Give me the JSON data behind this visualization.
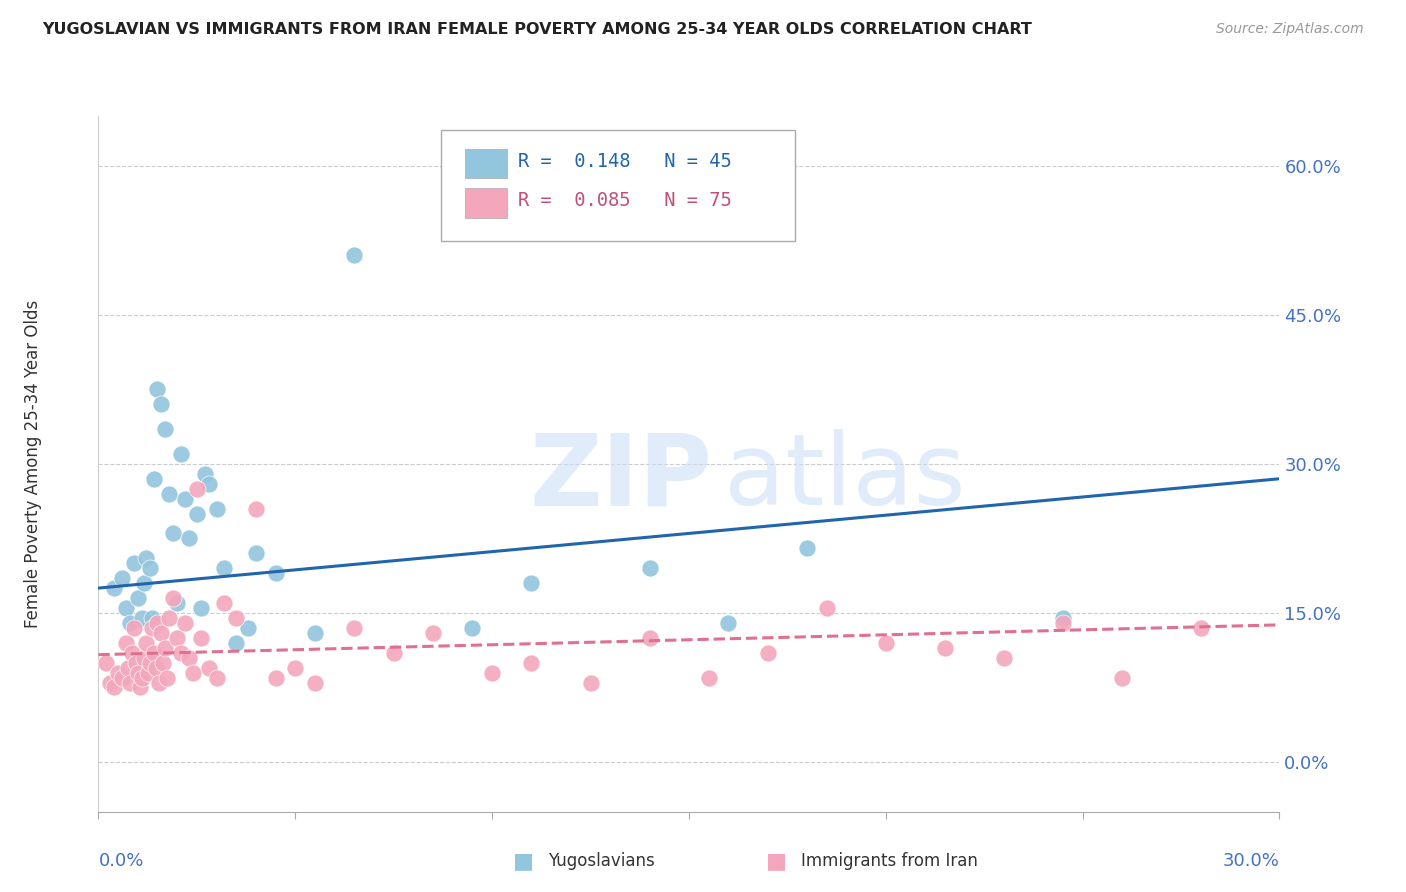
{
  "title": "YUGOSLAVIAN VS IMMIGRANTS FROM IRAN FEMALE POVERTY AMONG 25-34 YEAR OLDS CORRELATION CHART",
  "source": "Source: ZipAtlas.com",
  "ylabel": "Female Poverty Among 25-34 Year Olds",
  "ytick_values": [
    0.0,
    15.0,
    30.0,
    45.0,
    60.0
  ],
  "xlim": [
    0.0,
    30.0
  ],
  "ylim": [
    -5.0,
    65.0
  ],
  "color_blue": "#92c5de",
  "color_pink": "#f4a6bd",
  "color_blue_line": "#2166ac",
  "color_pink_line": "#e07090",
  "color_axis_blue": "#4472c4",
  "yug_x": [
    0.4,
    0.6,
    0.7,
    0.8,
    0.9,
    1.0,
    1.1,
    1.15,
    1.2,
    1.3,
    1.35,
    1.4,
    1.5,
    1.6,
    1.7,
    1.8,
    1.9,
    2.0,
    2.1,
    2.2,
    2.3,
    2.5,
    2.6,
    2.7,
    2.8,
    3.0,
    3.2,
    3.5,
    3.8,
    4.0,
    4.5,
    5.5,
    6.5,
    9.5,
    11.0,
    14.0,
    16.0,
    18.0,
    24.5
  ],
  "yug_y": [
    17.5,
    18.5,
    15.5,
    14.0,
    20.0,
    16.5,
    14.5,
    18.0,
    20.5,
    19.5,
    14.5,
    28.5,
    37.5,
    36.0,
    33.5,
    27.0,
    23.0,
    16.0,
    31.0,
    26.5,
    22.5,
    25.0,
    15.5,
    29.0,
    28.0,
    25.5,
    19.5,
    12.0,
    13.5,
    21.0,
    19.0,
    13.0,
    51.0,
    13.5,
    18.0,
    19.5,
    14.0,
    21.5,
    14.5
  ],
  "iran_x": [
    0.2,
    0.3,
    0.4,
    0.5,
    0.6,
    0.7,
    0.75,
    0.8,
    0.85,
    0.9,
    0.95,
    1.0,
    1.05,
    1.1,
    1.15,
    1.2,
    1.25,
    1.3,
    1.35,
    1.4,
    1.45,
    1.5,
    1.55,
    1.6,
    1.65,
    1.7,
    1.75,
    1.8,
    1.9,
    2.0,
    2.1,
    2.2,
    2.3,
    2.4,
    2.5,
    2.6,
    2.8,
    3.0,
    3.2,
    3.5,
    4.0,
    4.5,
    5.0,
    5.5,
    6.5,
    7.5,
    8.5,
    10.0,
    11.0,
    12.5,
    14.0,
    15.5,
    17.0,
    18.5,
    20.0,
    21.5,
    23.0,
    24.5,
    26.0,
    28.0
  ],
  "iran_y": [
    10.0,
    8.0,
    7.5,
    9.0,
    8.5,
    12.0,
    9.5,
    8.0,
    11.0,
    13.5,
    10.0,
    9.0,
    7.5,
    8.5,
    10.5,
    12.0,
    9.0,
    10.0,
    13.5,
    11.0,
    9.5,
    14.0,
    8.0,
    13.0,
    10.0,
    11.5,
    8.5,
    14.5,
    16.5,
    12.5,
    11.0,
    14.0,
    10.5,
    9.0,
    27.5,
    12.5,
    9.5,
    8.5,
    16.0,
    14.5,
    25.5,
    8.5,
    9.5,
    8.0,
    13.5,
    11.0,
    13.0,
    9.0,
    10.0,
    8.0,
    12.5,
    8.5,
    11.0,
    15.5,
    12.0,
    11.5,
    10.5,
    14.0,
    8.5,
    13.5
  ],
  "yug_line_y_start": 17.5,
  "yug_line_y_end": 28.5,
  "iran_line_y_start": 10.8,
  "iran_line_y_end": 13.8
}
